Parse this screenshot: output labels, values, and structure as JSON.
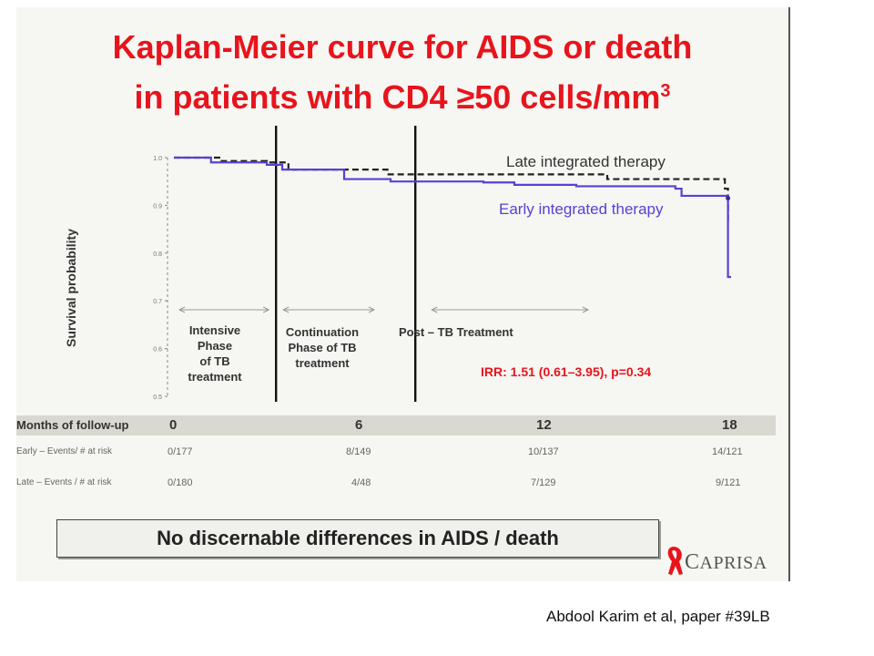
{
  "slide": {
    "title_line1": "Kaplan-Meier curve for AIDS or death",
    "title_line2_main": "in patients with CD4 ≥50 cells/mm",
    "title_line2_sup": "3",
    "conclusion": "No discernable differences in AIDS / death",
    "logo_text_initial": "C",
    "logo_text_rest": "APRISA",
    "citation": "Abdool Karim et al, paper #39LB",
    "accent_color": "#e8141c"
  },
  "chart_data": {
    "type": "line",
    "ylabel": "Survival probability",
    "xlabel": "Months of follow-up",
    "x_ticks": [
      "0",
      "6",
      "12",
      "18"
    ],
    "xlim": [
      0,
      18
    ],
    "ylim": [
      0.5,
      1.0
    ],
    "y_ticks": [
      "1.0",
      "0.9",
      "0.8",
      "0.7",
      "0.6",
      "0.5"
    ],
    "y_tick_values": [
      1.0,
      0.9,
      0.8,
      0.7,
      0.6,
      0.5
    ],
    "series": [
      {
        "name": "Late integrated therapy",
        "color": "#222222",
        "style": "dashed",
        "points": [
          [
            0,
            1.0
          ],
          [
            1.5,
            0.993
          ],
          [
            3,
            0.99
          ],
          [
            3.7,
            0.975
          ],
          [
            6.4,
            0.975
          ],
          [
            6.9,
            0.965
          ],
          [
            12,
            0.965
          ],
          [
            14,
            0.955
          ],
          [
            17.5,
            0.955
          ],
          [
            17.8,
            0.935
          ],
          [
            17.9,
            0.935
          ],
          [
            17.9,
            0.86
          ]
        ]
      },
      {
        "name": "Early integrated therapy",
        "color": "#5b3fd6",
        "style": "solid",
        "points": [
          [
            0,
            1.0
          ],
          [
            1.2,
            0.99
          ],
          [
            3,
            0.985
          ],
          [
            3.5,
            0.975
          ],
          [
            5,
            0.975
          ],
          [
            5.5,
            0.955
          ],
          [
            7,
            0.95
          ],
          [
            10,
            0.948
          ],
          [
            11,
            0.943
          ],
          [
            13,
            0.94
          ],
          [
            16.2,
            0.935
          ],
          [
            16.4,
            0.92
          ],
          [
            17.9,
            0.915
          ],
          [
            17.9,
            0.75
          ],
          [
            18,
            0.75
          ]
        ]
      }
    ],
    "phase_dividers_months": [
      3.3,
      7.8
    ],
    "phases": [
      {
        "label": [
          "Intensive",
          "Phase",
          "of TB",
          "treatment"
        ]
      },
      {
        "label": [
          "Continuation",
          "Phase of TB",
          "treatment"
        ]
      },
      {
        "label": [
          "Post – TB Treatment"
        ]
      }
    ],
    "annotation": "IRR: 1.51 (0.61–3.95), p=0.34",
    "table": {
      "header_label": "Months of follow-up",
      "rows": [
        {
          "label": "Early – Events/ # at risk",
          "values": [
            "0/177",
            "8/149",
            "10/137",
            "14/121"
          ]
        },
        {
          "label": "Late – Events / # at risk",
          "values": [
            "0/180",
            "4/48",
            "7/129",
            "9/121"
          ]
        }
      ]
    }
  }
}
